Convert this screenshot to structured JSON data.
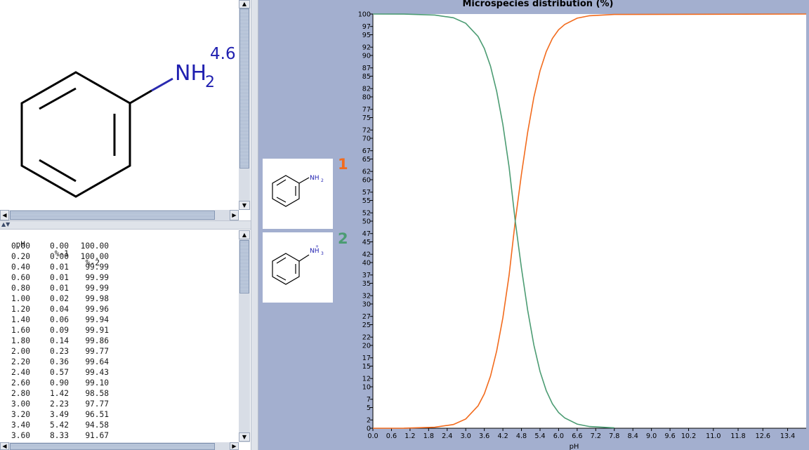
{
  "molecule": {
    "name_label": "NH",
    "subscript": "2",
    "pka_label": "4.6"
  },
  "table": {
    "headers": [
      "pH",
      "%-1",
      "%-2"
    ],
    "rows": [
      [
        "0.00",
        "0.00",
        "100.00"
      ],
      [
        "0.20",
        "0.00",
        "100.00"
      ],
      [
        "0.40",
        "0.01",
        "99.99"
      ],
      [
        "0.60",
        "0.01",
        "99.99"
      ],
      [
        "0.80",
        "0.01",
        "99.99"
      ],
      [
        "1.00",
        "0.02",
        "99.98"
      ],
      [
        "1.20",
        "0.04",
        "99.96"
      ],
      [
        "1.40",
        "0.06",
        "99.94"
      ],
      [
        "1.60",
        "0.09",
        "99.91"
      ],
      [
        "1.80",
        "0.14",
        "99.86"
      ],
      [
        "2.00",
        "0.23",
        "99.77"
      ],
      [
        "2.20",
        "0.36",
        "99.64"
      ],
      [
        "2.40",
        "0.57",
        "99.43"
      ],
      [
        "2.60",
        "0.90",
        "99.10"
      ],
      [
        "2.80",
        "1.42",
        "98.58"
      ],
      [
        "3.00",
        "2.23",
        "97.77"
      ],
      [
        "3.20",
        "3.49",
        "96.51"
      ],
      [
        "3.40",
        "5.42",
        "94.58"
      ],
      [
        "3.60",
        "8.33",
        "91.67"
      ]
    ]
  },
  "species": [
    {
      "label": "1",
      "group_label": "NH",
      "sub": "2",
      "charge": "",
      "color": "#f26b1d"
    },
    {
      "label": "2",
      "group_label": "NH",
      "sub": "3",
      "charge": "+",
      "color": "#4c9c73"
    }
  ],
  "chart_data": {
    "type": "line",
    "title": "Microspecies distribution (%)",
    "xlabel": "pH",
    "ylabel": "",
    "xlim": [
      0,
      14
    ],
    "ylim": [
      0,
      100
    ],
    "pKa": 4.6,
    "x_ticks": [
      "0.0",
      "0.6",
      "1.2",
      "1.8",
      "2.4",
      "3.0",
      "3.6",
      "4.2",
      "4.8",
      "5.4",
      "6.0",
      "6.6",
      "7.2",
      "7.8",
      "8.4",
      "9.0",
      "9.6",
      "10.2",
      "11.0",
      "11.8",
      "12.6",
      "13.4"
    ],
    "x_tick_values": [
      0.0,
      0.6,
      1.2,
      1.8,
      2.4,
      3.0,
      3.6,
      4.2,
      4.8,
      5.4,
      6.0,
      6.6,
      7.2,
      7.8,
      8.4,
      9.0,
      9.6,
      10.2,
      11.0,
      11.8,
      12.6,
      13.4
    ],
    "y_ticks": [
      0,
      2,
      5,
      7,
      10,
      12,
      15,
      17,
      20,
      22,
      25,
      27,
      30,
      32,
      35,
      37,
      40,
      42,
      45,
      47,
      50,
      52,
      55,
      57,
      60,
      62,
      65,
      67,
      70,
      72,
      75,
      77,
      80,
      82,
      85,
      87,
      90,
      92,
      95,
      97,
      100
    ],
    "series": [
      {
        "name": "1",
        "color": "#f26b1d",
        "x": [
          0.0,
          1.0,
          2.0,
          2.6,
          3.0,
          3.4,
          3.6,
          3.8,
          4.0,
          4.2,
          4.4,
          4.6,
          4.8,
          5.0,
          5.2,
          5.4,
          5.6,
          5.8,
          6.0,
          6.2,
          6.6,
          7.0,
          7.8,
          14.0
        ],
        "y": [
          0.0,
          0.02,
          0.23,
          0.9,
          2.23,
          5.42,
          8.33,
          12.6,
          18.7,
          26.7,
          36.9,
          50.0,
          61.3,
          71.5,
          79.9,
          86.3,
          90.9,
          94.1,
          96.2,
          97.5,
          99.0,
          99.6,
          99.9,
          100.0
        ]
      },
      {
        "name": "2",
        "color": "#4c9c73",
        "x": [
          0.0,
          1.0,
          2.0,
          2.6,
          3.0,
          3.4,
          3.6,
          3.8,
          4.0,
          4.2,
          4.4,
          4.6,
          4.8,
          5.0,
          5.2,
          5.4,
          5.6,
          5.8,
          6.0,
          6.2,
          6.6,
          7.0,
          7.8
        ],
        "y": [
          100.0,
          99.98,
          99.77,
          99.1,
          97.77,
          94.58,
          91.67,
          87.4,
          81.3,
          73.3,
          63.1,
          50.0,
          38.7,
          28.5,
          20.1,
          13.7,
          9.1,
          5.9,
          3.8,
          2.5,
          1.0,
          0.4,
          0.1
        ]
      }
    ]
  }
}
